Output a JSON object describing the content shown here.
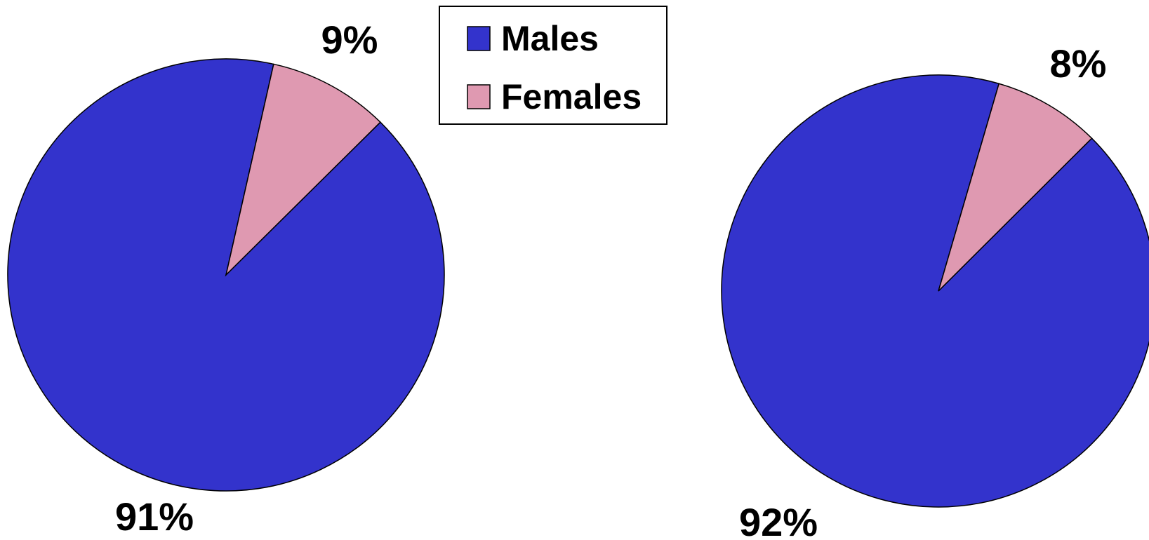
{
  "colors": {
    "males": "#3333cc",
    "females": "#df99b1",
    "outline": "#000000"
  },
  "legend": {
    "items": [
      {
        "label": "Males",
        "color": "#3333cc"
      },
      {
        "label": "Females",
        "color": "#df99b1"
      }
    ]
  },
  "chart_data": [
    {
      "type": "pie",
      "title": "",
      "categories": [
        "Males",
        "Females"
      ],
      "values": [
        91,
        9
      ],
      "labels": [
        "91%",
        "9%"
      ]
    },
    {
      "type": "pie",
      "title": "",
      "categories": [
        "Males",
        "Females"
      ],
      "values": [
        92,
        8
      ],
      "labels": [
        "92%",
        "8%"
      ]
    }
  ]
}
